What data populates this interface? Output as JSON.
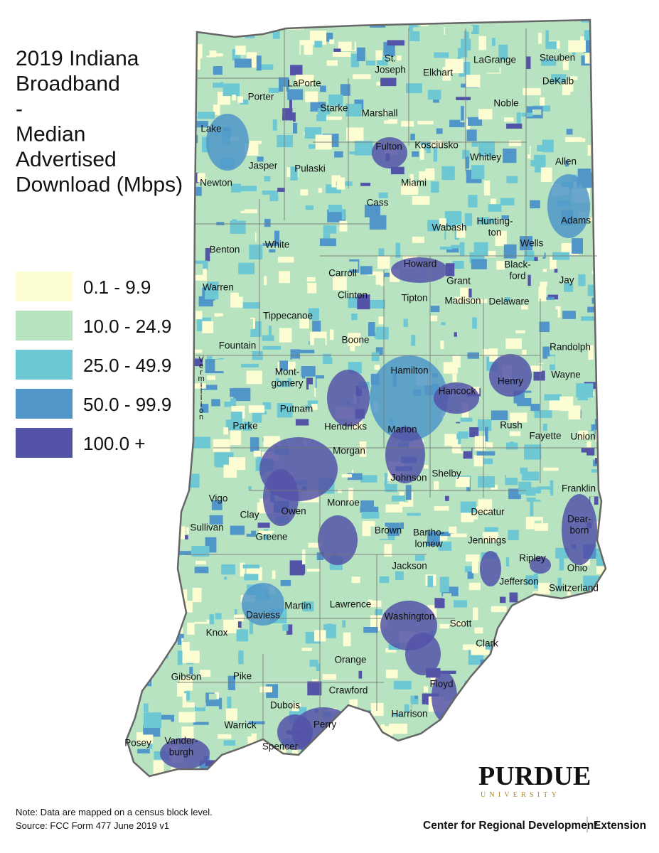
{
  "title": {
    "lines": [
      "2019 Indiana",
      "Broadband",
      "-",
      "Median",
      "Advertised",
      "Download (Mbps)"
    ]
  },
  "legend": {
    "items": [
      {
        "label": "0.1 - 9.9",
        "color": "#fdfdd3"
      },
      {
        "label": "10.0 - 24.9",
        "color": "#b7e3c1"
      },
      {
        "label": "25.0 - 49.9",
        "color": "#6ec8d3"
      },
      {
        "label": "50.0 - 99.9",
        "color": "#5096c9"
      },
      {
        "label": "100.0 +",
        "color": "#5353a8"
      }
    ]
  },
  "counties": [
    [
      "Lake"
    ],
    [
      "Porter"
    ],
    [
      "LaPorte"
    ],
    [
      "St.",
      "Joseph"
    ],
    [
      "Elkhart"
    ],
    [
      "LaGrange"
    ],
    [
      "Steuben"
    ],
    [
      "DeKalb"
    ],
    [
      "Noble"
    ],
    [
      "Starke"
    ],
    [
      "Marshall"
    ],
    [
      "Kosciusko"
    ],
    [
      "Fulton"
    ],
    [
      "Whitley"
    ],
    [
      "Allen"
    ],
    [
      "Newton"
    ],
    [
      "Jasper"
    ],
    [
      "Pulaski"
    ],
    [
      "Miami"
    ],
    [
      "Cass"
    ],
    [
      "Wabash"
    ],
    [
      "Hunting-",
      "ton"
    ],
    [
      "Adams"
    ],
    [
      "Wells"
    ],
    [
      "Benton"
    ],
    [
      "White"
    ],
    [
      "Carroll"
    ],
    [
      "Howard"
    ],
    [
      "Grant"
    ],
    [
      "Black-",
      "ford"
    ],
    [
      "Jay"
    ],
    [
      "Warren"
    ],
    [
      "Clinton"
    ],
    [
      "Tipton"
    ],
    [
      "Madison"
    ],
    [
      "Delaware"
    ],
    [
      "Tippecanoe"
    ],
    [
      "Fountain"
    ],
    [
      "Boone"
    ],
    [
      "Randolph"
    ],
    [
      "Hamilton"
    ],
    [
      "Henry"
    ],
    [
      "Wayne"
    ],
    [
      "Vermillion"
    ],
    [
      "Mont-",
      "gomery"
    ],
    [
      "Hancock"
    ],
    [
      "Putnam"
    ],
    [
      "Parke"
    ],
    [
      "Hendricks"
    ],
    [
      "Marion"
    ],
    [
      "Rush"
    ],
    [
      "Fayette"
    ],
    [
      "Union"
    ],
    [
      "Morgan"
    ],
    [
      "Johnson"
    ],
    [
      "Shelby"
    ],
    [
      "Franklin"
    ],
    [
      "Vigo"
    ],
    [
      "Clay"
    ],
    [
      "Owen"
    ],
    [
      "Monroe"
    ],
    [
      "Decatur"
    ],
    [
      "Dear-",
      "born"
    ],
    [
      "Sullivan"
    ],
    [
      "Greene"
    ],
    [
      "Brown"
    ],
    [
      "Bartho-",
      "lomew"
    ],
    [
      "Jennings"
    ],
    [
      "Ripley"
    ],
    [
      "Ohio"
    ],
    [
      "Jackson"
    ],
    [
      "Jefferson"
    ],
    [
      "Switzerland"
    ],
    [
      "Lawrence"
    ],
    [
      "Martin"
    ],
    [
      "Daviess"
    ],
    [
      "Washington"
    ],
    [
      "Scott"
    ],
    [
      "Knox"
    ],
    [
      "Clark"
    ],
    [
      "Orange"
    ],
    [
      "Gibson"
    ],
    [
      "Pike"
    ],
    [
      "Floyd"
    ],
    [
      "Crawford"
    ],
    [
      "Dubois"
    ],
    [
      "Harrison"
    ],
    [
      "Warrick"
    ],
    [
      "Perry"
    ],
    [
      "Posey"
    ],
    [
      "Vander-",
      "burgh"
    ],
    [
      "Spencer"
    ]
  ],
  "notes": [
    "Note: Data are mapped on a census block level.",
    "Source: FCC Form 477 June 2019 v1"
  ],
  "logo": {
    "name": "PURDUE",
    "sub": "UNIVERSITY",
    "center": "Center for Regional Development",
    "extension": "Extension"
  }
}
